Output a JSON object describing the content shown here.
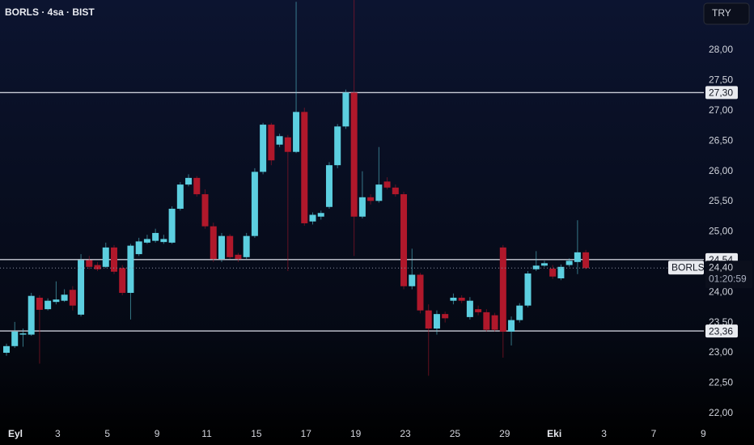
{
  "chart_data": {
    "type": "candlestick",
    "title": "BORLS · 4sa · BIST",
    "currency": "TRY",
    "up_color": "#5ccfe0",
    "down_color": "#b0182b",
    "categories": [
      "Eyl",
      null,
      null,
      null,
      null,
      null,
      "3",
      null,
      null,
      null,
      null,
      null,
      "5",
      null,
      null,
      null,
      null,
      null,
      "9",
      null,
      null,
      null,
      null,
      null,
      "11",
      null,
      null,
      null,
      null,
      null,
      "15",
      null,
      null,
      null,
      null,
      null,
      "17",
      null,
      null,
      null,
      null,
      null,
      "19",
      null,
      null,
      null,
      null,
      null,
      "23",
      null,
      null,
      null,
      null,
      null,
      "25",
      null,
      null,
      null,
      null,
      null,
      "29",
      null,
      null,
      null,
      null,
      null,
      "Eki",
      null,
      null,
      null,
      null,
      null,
      "3",
      null,
      null,
      null,
      null,
      null,
      "7",
      null,
      null,
      null,
      null,
      null,
      "9"
    ],
    "open": [
      23.0,
      23.11,
      23.3,
      23.3,
      23.91,
      23.72,
      23.84,
      23.86,
      24.04,
      23.63,
      24.53,
      24.45,
      24.42,
      24.74,
      24.4,
      23.99,
      24.63,
      24.82,
      24.85,
      24.83,
      24.82,
      25.38,
      25.78,
      25.89,
      25.62,
      25.09,
      24.55,
      24.93,
      24.62,
      24.58,
      24.93,
      25.99,
      26.77,
      26.44,
      26.56,
      26.32,
      26.98,
      25.17,
      25.25,
      25.41,
      26.1,
      26.74,
      27.3,
      25.25,
      25.57,
      25.51,
      25.83,
      25.73,
      25.62,
      24.1,
      24.29,
      23.7,
      23.4,
      23.64,
      23.86,
      23.91,
      23.59,
      23.72,
      23.67,
      23.62,
      24.74,
      23.35,
      23.54,
      23.78,
      24.38,
      24.44,
      24.39,
      24.23,
      24.45,
      24.5,
      24.66,
      null,
      null,
      null,
      null,
      null,
      null,
      null,
      null,
      null,
      null,
      null,
      null,
      null,
      null
    ],
    "high": [
      23.15,
      23.51,
      23.4,
      23.99,
      23.95,
      23.9,
      24.18,
      24.05,
      24.1,
      24.63,
      24.6,
      24.5,
      24.82,
      24.78,
      24.45,
      24.8,
      24.9,
      24.95,
      25.05,
      24.95,
      25.42,
      25.82,
      25.95,
      25.92,
      25.7,
      25.15,
      24.98,
      24.96,
      24.65,
      24.98,
      26.05,
      26.8,
      26.8,
      26.62,
      26.6,
      28.8,
      27.05,
      25.32,
      25.35,
      26.15,
      26.78,
      27.35,
      28.83,
      26.0,
      25.62,
      26.4,
      25.9,
      25.78,
      25.66,
      24.72,
      24.32,
      23.8,
      23.7,
      23.68,
      23.98,
      23.95,
      23.92,
      23.78,
      23.72,
      23.66,
      24.78,
      23.6,
      23.82,
      24.35,
      24.68,
      24.52,
      24.45,
      24.46,
      24.56,
      25.19,
      24.7,
      null,
      null,
      null,
      null,
      null,
      null,
      null,
      null,
      null,
      null,
      null,
      null,
      null,
      null
    ],
    "low": [
      22.95,
      23.08,
      23.1,
      23.28,
      22.82,
      23.7,
      23.8,
      23.84,
      23.7,
      23.6,
      24.38,
      24.35,
      24.4,
      24.3,
      23.95,
      23.55,
      24.6,
      24.8,
      24.82,
      24.8,
      24.8,
      25.35,
      25.75,
      25.58,
      25.05,
      24.5,
      24.5,
      24.55,
      24.5,
      24.55,
      24.9,
      25.95,
      26.1,
      26.4,
      24.35,
      26.3,
      25.1,
      25.12,
      25.2,
      25.38,
      26.05,
      26.7,
      24.6,
      25.22,
      25.45,
      25.48,
      25.7,
      25.58,
      24.05,
      24.05,
      23.65,
      22.62,
      23.3,
      23.5,
      23.8,
      23.82,
      23.55,
      23.62,
      23.35,
      23.35,
      22.92,
      23.12,
      23.5,
      23.75,
      24.35,
      24.42,
      24.22,
      24.2,
      24.42,
      24.3,
      24.38,
      null,
      null,
      null,
      null,
      null,
      null,
      null,
      null,
      null,
      null,
      null,
      null,
      null,
      null
    ],
    "close": [
      23.11,
      23.35,
      23.32,
      23.94,
      23.71,
      23.86,
      23.88,
      23.96,
      23.78,
      24.53,
      24.42,
      24.38,
      24.74,
      24.34,
      23.99,
      24.77,
      24.84,
      24.88,
      24.98,
      24.88,
      25.38,
      25.78,
      25.89,
      25.62,
      25.09,
      24.55,
      24.93,
      24.58,
      24.55,
      24.93,
      25.99,
      26.77,
      26.18,
      26.58,
      26.32,
      26.98,
      25.14,
      25.28,
      25.31,
      26.1,
      26.74,
      27.3,
      25.25,
      25.57,
      25.51,
      25.78,
      25.73,
      25.62,
      24.1,
      24.29,
      23.7,
      23.4,
      23.64,
      23.57,
      23.91,
      23.86,
      23.86,
      23.67,
      23.38,
      23.38,
      23.35,
      23.54,
      23.78,
      24.31,
      24.44,
      24.48,
      24.26,
      24.42,
      24.52,
      24.66,
      24.4,
      null,
      null,
      null,
      null,
      null,
      null,
      null,
      null,
      null,
      null,
      null,
      null,
      null,
      null
    ],
    "ylim": [
      21.81,
      28.83
    ],
    "yticks": [
      {
        "value": 22,
        "label": "22,00"
      },
      {
        "value": 22.5,
        "label": "22,50"
      },
      {
        "value": 23,
        "label": "23,00"
      },
      {
        "value": 23.5,
        "label": "23,50"
      },
      {
        "value": 24,
        "label": "24,00"
      },
      {
        "value": 24.5,
        "label": "24,50"
      },
      {
        "value": 25,
        "label": "25,00"
      },
      {
        "value": 25.5,
        "label": "25,50"
      },
      {
        "value": 26,
        "label": "26,00"
      },
      {
        "value": 26.5,
        "label": "26,50"
      },
      {
        "value": 27,
        "label": "27,00"
      },
      {
        "value": 27.5,
        "label": "27,50"
      },
      {
        "value": 28,
        "label": "28,00"
      }
    ],
    "hlines": [
      {
        "value": 27.3,
        "label": "27,30"
      },
      {
        "value": 24.54,
        "label": "24,54"
      },
      {
        "value": 23.36,
        "label": "23,36"
      }
    ],
    "last_price": {
      "name": "BORLS",
      "value": 24.4,
      "label": "24,40",
      "countdown": "01:20:59"
    }
  }
}
